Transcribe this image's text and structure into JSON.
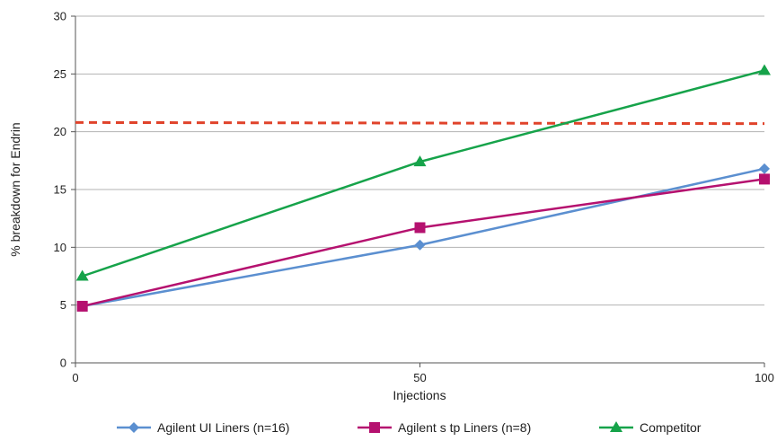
{
  "chart_data": {
    "type": "line",
    "xlabel": "Injections",
    "ylabel": "% breakdown for Endrin",
    "x": [
      1,
      50,
      100
    ],
    "x_ticks": [
      0,
      50,
      100
    ],
    "xlim": [
      0,
      100
    ],
    "y_ticks": [
      0,
      5,
      10,
      15,
      20,
      25,
      30
    ],
    "ylim": [
      0,
      30
    ],
    "grid": "horizontal",
    "legend_position": "bottom",
    "series": [
      {
        "name": "Agilent UI Liners (n=16)",
        "values": [
          4.9,
          10.2,
          16.8
        ],
        "color": "#5b8fd0",
        "marker": "diamond"
      },
      {
        "name": "Agilent s tp Liners (n=8)",
        "values": [
          4.9,
          11.7,
          15.9
        ],
        "color": "#b5116f",
        "marker": "square"
      },
      {
        "name": "Competitor",
        "values": [
          7.5,
          17.4,
          25.3
        ],
        "color": "#16a34a",
        "marker": "triangle"
      }
    ],
    "reference_line": {
      "y_start": 20.8,
      "y_end": 20.7,
      "color": "#e0432b",
      "style": "dashed"
    }
  }
}
